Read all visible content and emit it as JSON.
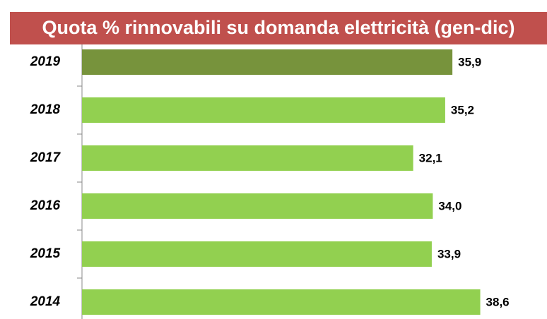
{
  "chart_data": {
    "type": "bar",
    "orientation": "horizontal",
    "title": "Quota % rinnovabili su domanda elettricità (gen-dic)",
    "categories": [
      "2019",
      "2018",
      "2017",
      "2016",
      "2015",
      "2014"
    ],
    "values": [
      35.9,
      35.2,
      32.1,
      34.0,
      33.9,
      38.6
    ],
    "value_labels": [
      "35,9",
      "35,2",
      "32,1",
      "34,0",
      "33,9",
      "38,6"
    ],
    "colors": [
      "#77933c",
      "#92d050",
      "#92d050",
      "#92d050",
      "#92d050",
      "#92d050"
    ],
    "title_background": "#c0504d"
  }
}
